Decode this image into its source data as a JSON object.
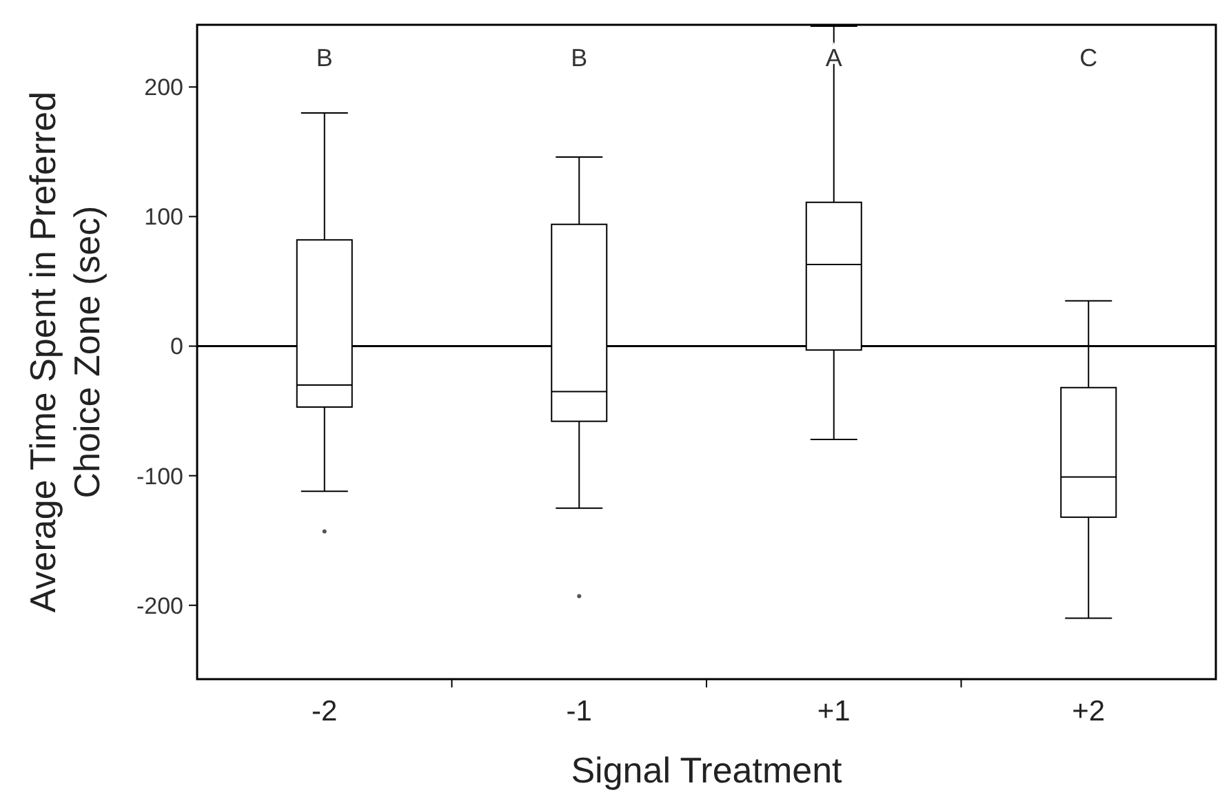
{
  "chart_data": {
    "type": "box",
    "xlabel": "Signal Treatment",
    "ylabel": "Average Time Spent in Preferred\nChoice Zone (sec)",
    "categories": [
      "-2",
      "-1",
      "+1",
      "+2"
    ],
    "boxes": [
      {
        "low": -112,
        "q1": -47,
        "median": -30,
        "q3": 82,
        "high": 180,
        "outliers": [
          -143
        ]
      },
      {
        "low": -125,
        "q1": -58,
        "median": -35,
        "q3": 94,
        "high": 146,
        "outliers": [
          -193
        ]
      },
      {
        "low": -72,
        "q1": -3,
        "median": 63,
        "q3": 111,
        "high": 247
      },
      {
        "low": -210,
        "q1": -132,
        "median": -101,
        "q3": -32,
        "high": 35
      }
    ],
    "ylim": [
      -257,
      248
    ],
    "yticks": [
      -200,
      -100,
      0,
      100,
      200
    ],
    "grid": false,
    "ref_lines": [
      {
        "axis": "y",
        "value": 0,
        "color": "#000000"
      }
    ],
    "annotations": [
      "B",
      "B",
      "A",
      "C"
    ]
  }
}
